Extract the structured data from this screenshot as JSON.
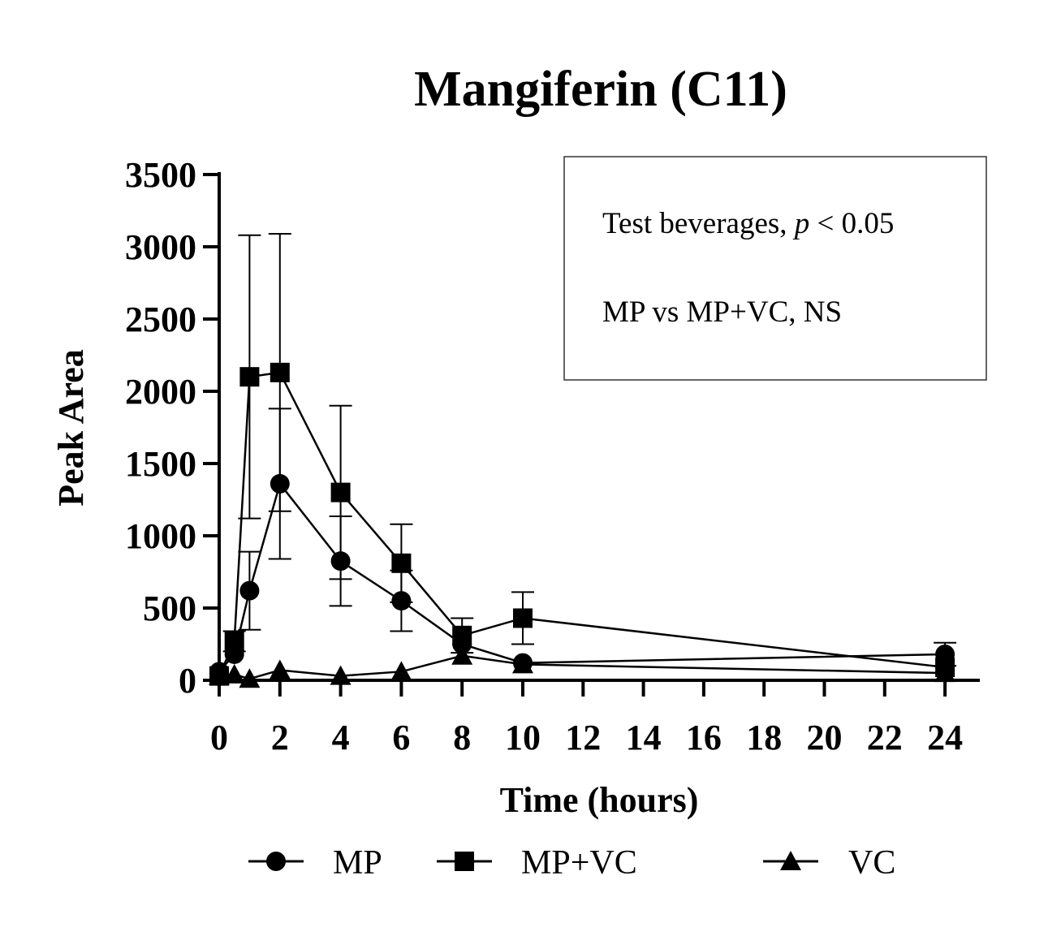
{
  "chart_data": {
    "type": "line",
    "title": "Mangiferin (C11)",
    "xlabel": "Time (hours)",
    "ylabel": "Peak Area",
    "ylim": [
      0,
      3500
    ],
    "yticks": [
      0,
      500,
      1000,
      1500,
      2000,
      2500,
      3000,
      3500
    ],
    "xticks": [
      0,
      2,
      4,
      6,
      8,
      10,
      12,
      14,
      16,
      18,
      20,
      22,
      24
    ],
    "annotation": {
      "line1_prefix": "Test beverages, ",
      "line1_italic": "p",
      "line1_suffix": " < 0.05",
      "line2": "MP vs MP+VC, NS"
    },
    "series": [
      {
        "name": "MP",
        "marker": "circle",
        "x": [
          0,
          0.5,
          1,
          2,
          4,
          6,
          8,
          10,
          24
        ],
        "y": [
          60,
          180,
          620,
          1360,
          825,
          550,
          250,
          120,
          180
        ],
        "err": [
          0,
          0,
          270,
          520,
          310,
          210,
          0,
          0,
          80
        ]
      },
      {
        "name": "MP+VC",
        "marker": "square",
        "x": [
          0,
          0.5,
          1,
          2,
          4,
          6,
          8,
          10,
          24
        ],
        "y": [
          30,
          270,
          2100,
          2130,
          1300,
          810,
          310,
          430,
          90
        ],
        "err": [
          0,
          70,
          980,
          960,
          600,
          270,
          120,
          180,
          0
        ]
      },
      {
        "name": "VC",
        "marker": "triangle",
        "x": [
          0,
          0.5,
          1,
          2,
          4,
          6,
          8,
          10,
          24
        ],
        "y": [
          30,
          40,
          10,
          70,
          30,
          60,
          170,
          110,
          50
        ],
        "err": [
          0,
          0,
          0,
          0,
          0,
          0,
          0,
          0,
          0
        ]
      }
    ]
  }
}
